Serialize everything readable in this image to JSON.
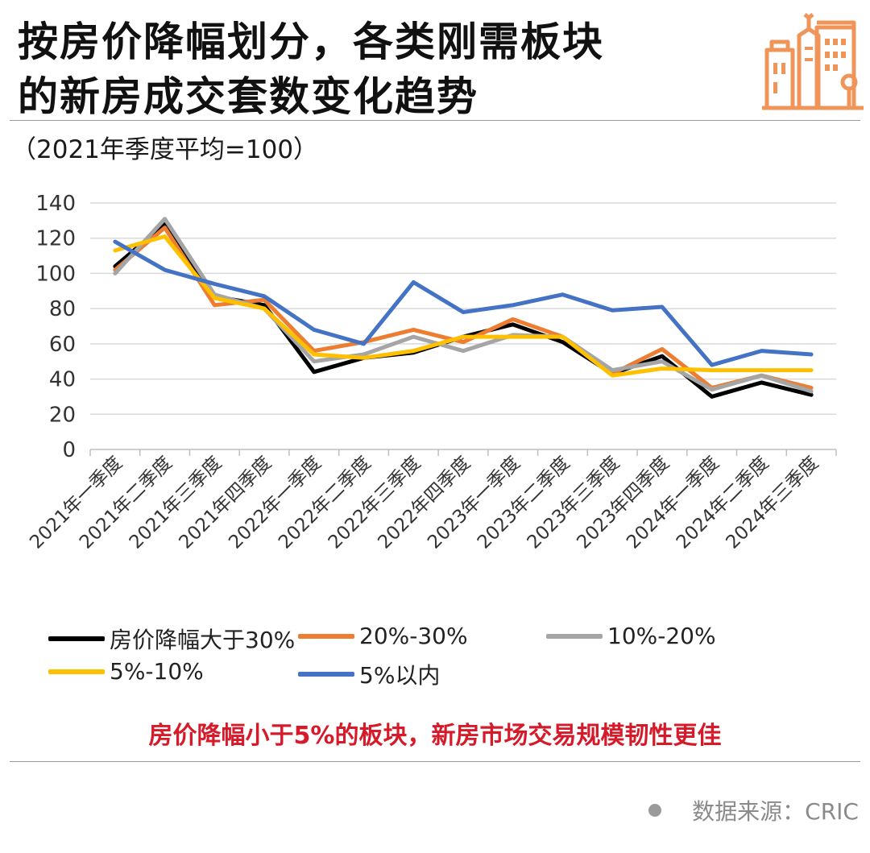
{
  "title_line1": "按房价降幅划分，各类刚需板块",
  "title_line2": "的新房成交套数变化趋势",
  "subtitle": "（2021年季度平均=100）",
  "highlight": "房价降幅小于5%的板块，新房市场交易规模韧性更佳",
  "source": "数据来源：CRIC",
  "icon": "city-buildings-icon",
  "colors": {
    "accent_icon": "#F0955A",
    "highlight_text": "#D61A2A",
    "grid": "#D9D9D9"
  },
  "chart_data": {
    "type": "line",
    "x": [
      "2021年一季度",
      "2021年二季度",
      "2021年三季度",
      "2021年四季度",
      "2022年一季度",
      "2022年二季度",
      "2022年三季度",
      "2022年四季度",
      "2023年一季度",
      "2023年二季度",
      "2023年三季度",
      "2023年四季度",
      "2024年一季度",
      "2024年二季度",
      "2024年三季度"
    ],
    "ylim": [
      0,
      140
    ],
    "yticks": [
      0,
      20,
      40,
      60,
      80,
      100,
      120,
      140
    ],
    "grid": "horizontal",
    "legend_position": "bottom",
    "series": [
      {
        "name": "房价降幅大于30%",
        "color": "#000000",
        "values": [
          104,
          128,
          87,
          82,
          44,
          52,
          55,
          64,
          71,
          61,
          43,
          53,
          30,
          38,
          31
        ]
      },
      {
        "name": "20%-30%",
        "color": "#ED7D31",
        "values": [
          102,
          126,
          82,
          85,
          56,
          61,
          68,
          61,
          74,
          64,
          43,
          57,
          35,
          42,
          35
        ]
      },
      {
        "name": "10%-20%",
        "color": "#A5A5A5",
        "values": [
          100,
          131,
          88,
          80,
          50,
          54,
          64,
          56,
          65,
          64,
          45,
          50,
          34,
          42,
          33
        ]
      },
      {
        "name": "5%-10%",
        "color": "#FFC000",
        "values": [
          113,
          121,
          86,
          80,
          54,
          52,
          56,
          64,
          64,
          64,
          42,
          46,
          45,
          45,
          45
        ]
      },
      {
        "name": "5%以内",
        "color": "#4472C4",
        "values": [
          118,
          102,
          94,
          87,
          68,
          60,
          95,
          78,
          82,
          88,
          79,
          81,
          48,
          56,
          54
        ]
      }
    ]
  }
}
